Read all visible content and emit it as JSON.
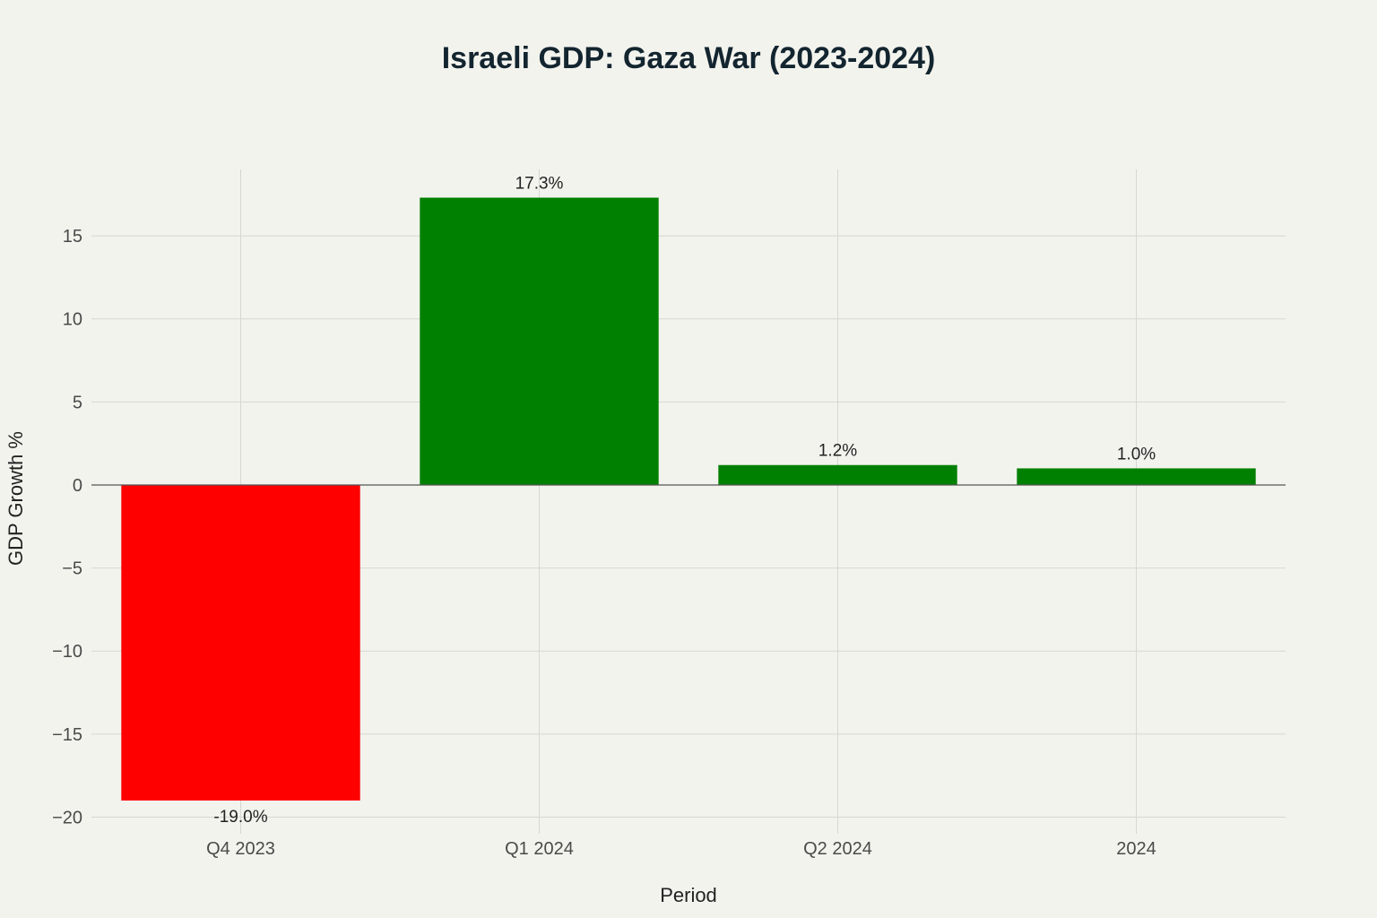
{
  "chart_data": {
    "type": "bar",
    "title": "Israeli GDP: Gaza War (2023-2024)",
    "xlabel": "Period",
    "ylabel": "GDP Growth %",
    "categories": [
      "Q4 2023",
      "Q1 2024",
      "Q2 2024",
      "2024"
    ],
    "values": [
      -19.0,
      17.3,
      1.2,
      1.0
    ],
    "data_labels": [
      "-19.0%",
      "17.3%",
      "1.2%",
      "1.0%"
    ],
    "colors": [
      "#ff0000",
      "#008000",
      "#008000",
      "#008000"
    ],
    "ylim": [
      -21,
      19
    ],
    "yticks": [
      15,
      10,
      5,
      0,
      -5,
      -10,
      -15,
      -20
    ],
    "ytick_labels": [
      "15",
      "10",
      "5",
      "0",
      "−5",
      "−10",
      "−15",
      "−20"
    ],
    "grid": true,
    "legend": "none"
  }
}
